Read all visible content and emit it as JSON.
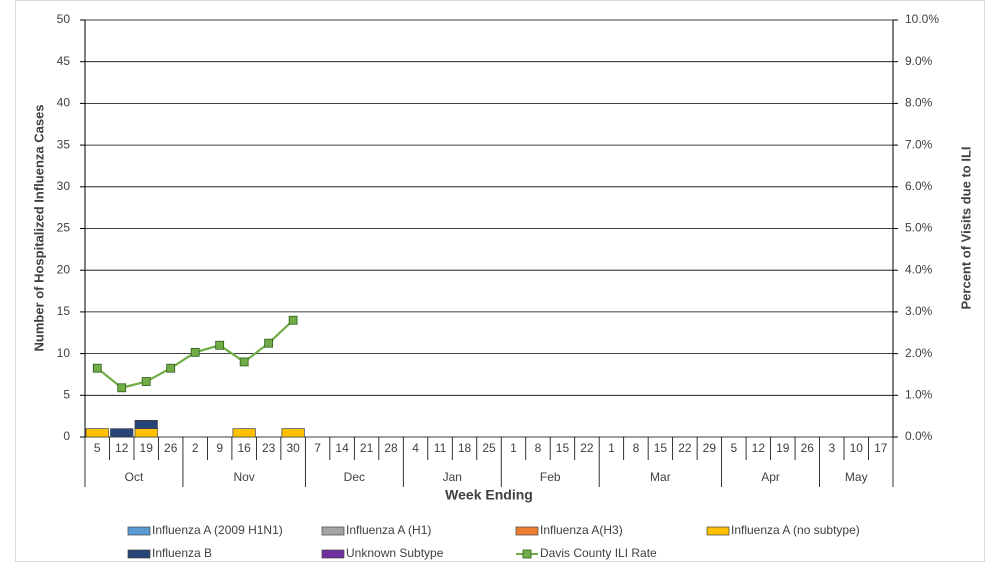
{
  "chart_data": {
    "type": "bar",
    "stacked": true,
    "y_label": "Number of Hospitalized Influenza Cases",
    "y2_label": "Percent of Visits due to ILI",
    "x_label": "Week Ending",
    "categories": [
      "5",
      "12",
      "19",
      "26",
      "2",
      "9",
      "16",
      "23",
      "30",
      "7",
      "14",
      "21",
      "28",
      "4",
      "11",
      "18",
      "25",
      "1",
      "8",
      "15",
      "22",
      "1",
      "8",
      "15",
      "22",
      "29",
      "5",
      "12",
      "19",
      "26",
      "3",
      "10",
      "17"
    ],
    "category_groups": [
      "Oct",
      null,
      null,
      null,
      "Nov",
      null,
      null,
      null,
      null,
      "Dec",
      null,
      null,
      null,
      "Jan",
      null,
      null,
      null,
      "Feb",
      null,
      null,
      null,
      "Mar",
      null,
      null,
      null,
      null,
      "Apr",
      null,
      null,
      null,
      "May",
      null,
      null
    ],
    "ylim": [
      0,
      50
    ],
    "yticks": [
      0,
      5,
      10,
      15,
      20,
      25,
      30,
      35,
      40,
      45,
      50
    ],
    "y2lim": [
      0,
      10
    ],
    "y2ticks": [
      {
        "value": 0,
        "label": "0.0%"
      },
      {
        "value": 1,
        "label": "1.0%"
      },
      {
        "value": 2,
        "label": "2.0%"
      },
      {
        "value": 3,
        "label": "3.0%"
      },
      {
        "value": 4,
        "label": "4.0%"
      },
      {
        "value": 5,
        "label": "5.0%"
      },
      {
        "value": 6,
        "label": "6.0%"
      },
      {
        "value": 7,
        "label": "7.0%"
      },
      {
        "value": 8,
        "label": "8.0%"
      },
      {
        "value": 9,
        "label": "9.0%"
      },
      {
        "value": 10,
        "label": "10.0%"
      }
    ],
    "grid": true,
    "series": [
      {
        "name": "Influenza A (2009 H1N1)",
        "color": "#5b9bd5",
        "values": [
          0,
          0,
          0,
          0,
          0,
          0,
          0,
          0,
          0,
          null,
          null,
          null,
          null,
          null,
          null,
          null,
          null,
          null,
          null,
          null,
          null,
          null,
          null,
          null,
          null,
          null,
          null,
          null,
          null,
          null,
          null,
          null,
          null
        ]
      },
      {
        "name": "Influenza A (H1)",
        "color": "#a5a5a5",
        "values": [
          0,
          0,
          0,
          0,
          0,
          0,
          0,
          0,
          0,
          null,
          null,
          null,
          null,
          null,
          null,
          null,
          null,
          null,
          null,
          null,
          null,
          null,
          null,
          null,
          null,
          null,
          null,
          null,
          null,
          null,
          null,
          null,
          null
        ]
      },
      {
        "name": "Influenza A(H3)",
        "color": "#ed7d31",
        "values": [
          0,
          0,
          0,
          0,
          0,
          0,
          0,
          0,
          0,
          null,
          null,
          null,
          null,
          null,
          null,
          null,
          null,
          null,
          null,
          null,
          null,
          null,
          null,
          null,
          null,
          null,
          null,
          null,
          null,
          null,
          null,
          null,
          null
        ]
      },
      {
        "name": "Influenza A (no subtype)",
        "color": "#ffc000",
        "values": [
          1,
          0,
          1,
          0,
          0,
          0,
          1,
          0,
          1,
          null,
          null,
          null,
          null,
          null,
          null,
          null,
          null,
          null,
          null,
          null,
          null,
          null,
          null,
          null,
          null,
          null,
          null,
          null,
          null,
          null,
          null,
          null,
          null
        ]
      },
      {
        "name": "Influenza B",
        "color": "#264478",
        "values": [
          0,
          1,
          1,
          0,
          0,
          0,
          0,
          0,
          0,
          null,
          null,
          null,
          null,
          null,
          null,
          null,
          null,
          null,
          null,
          null,
          null,
          null,
          null,
          null,
          null,
          null,
          null,
          null,
          null,
          null,
          null,
          null,
          null
        ]
      },
      {
        "name": "Unknown Subtype",
        "color": "#7030a0",
        "values": [
          0,
          0,
          0,
          0,
          0,
          0,
          0,
          0,
          0,
          null,
          null,
          null,
          null,
          null,
          null,
          null,
          null,
          null,
          null,
          null,
          null,
          null,
          null,
          null,
          null,
          null,
          null,
          null,
          null,
          null,
          null,
          null,
          null
        ]
      },
      {
        "name": "Davis County ILI Rate",
        "type": "line",
        "axis": "y2",
        "color": "#70ad47",
        "values": [
          1.65,
          1.18,
          1.33,
          1.65,
          2.03,
          2.2,
          1.8,
          2.25,
          2.8,
          null,
          null,
          null,
          null,
          null,
          null,
          null,
          null,
          null,
          null,
          null,
          null,
          null,
          null,
          null,
          null,
          null,
          null,
          null,
          null,
          null,
          null,
          null,
          null
        ]
      }
    ]
  }
}
